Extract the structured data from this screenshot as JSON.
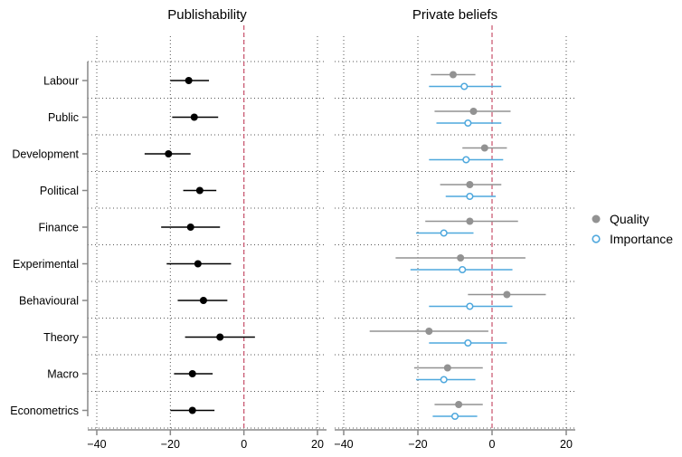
{
  "chart_data": {
    "type": "scatter",
    "categories": [
      "Labour",
      "Public",
      "Development",
      "Political",
      "Finance",
      "Experimental",
      "Behavioural",
      "Theory",
      "Macro",
      "Econometrics"
    ],
    "xlim": [
      -40,
      20
    ],
    "xticks": [
      -40,
      -20,
      0,
      20
    ],
    "xtick_labels": [
      "−40",
      "−20",
      "0",
      "20"
    ],
    "reference_line_x": 0,
    "grid": "dotted",
    "legend_position": "right",
    "panels": [
      {
        "title": "Publishability",
        "series": [
          {
            "name": "",
            "color": "#000000",
            "marker": "filled-circle",
            "points": [
              {
                "x": -15,
                "low": -20,
                "high": -9.5
              },
              {
                "x": -13.5,
                "low": -19.5,
                "high": -7
              },
              {
                "x": -20.5,
                "low": -27,
                "high": -14.5
              },
              {
                "x": -12,
                "low": -16.5,
                "high": -7.5
              },
              {
                "x": -14.5,
                "low": -22.5,
                "high": -6.5
              },
              {
                "x": -12.5,
                "low": -21,
                "high": -3.5
              },
              {
                "x": -11,
                "low": -18,
                "high": -4.5
              },
              {
                "x": -6.5,
                "low": -16,
                "high": 3
              },
              {
                "x": -14,
                "low": -19,
                "high": -8.5
              },
              {
                "x": -14,
                "low": -20,
                "high": -8
              }
            ]
          }
        ]
      },
      {
        "title": "Private beliefs",
        "series": [
          {
            "name": "Quality",
            "color": "#929292",
            "marker": "filled-circle",
            "points": [
              {
                "x": -10.5,
                "low": -16.5,
                "high": -4.5
              },
              {
                "x": -5,
                "low": -15.5,
                "high": 5
              },
              {
                "x": -2,
                "low": -8,
                "high": 4
              },
              {
                "x": -6,
                "low": -14,
                "high": 2.5
              },
              {
                "x": -6,
                "low": -18,
                "high": 7
              },
              {
                "x": -8.5,
                "low": -26,
                "high": 9
              },
              {
                "x": 4,
                "low": -6.5,
                "high": 14.5
              },
              {
                "x": -17,
                "low": -33,
                "high": -1
              },
              {
                "x": -12,
                "low": -21,
                "high": -2.5
              },
              {
                "x": -9,
                "low": -15.5,
                "high": -2.5
              }
            ]
          },
          {
            "name": "Importance",
            "color": "#4fa8dd",
            "marker": "hollow-circle",
            "points": [
              {
                "x": -7.5,
                "low": -17,
                "high": 2.5
              },
              {
                "x": -6.5,
                "low": -15,
                "high": 2.5
              },
              {
                "x": -7,
                "low": -17,
                "high": 3
              },
              {
                "x": -6,
                "low": -12.5,
                "high": 1
              },
              {
                "x": -13,
                "low": -20.5,
                "high": -5
              },
              {
                "x": -8,
                "low": -22,
                "high": 5.5
              },
              {
                "x": -6,
                "low": -17,
                "high": 5.5
              },
              {
                "x": -6.5,
                "low": -17,
                "high": 4
              },
              {
                "x": -13,
                "low": -20.5,
                "high": -4.5
              },
              {
                "x": -10,
                "low": -16,
                "high": -4
              }
            ]
          }
        ]
      }
    ]
  }
}
